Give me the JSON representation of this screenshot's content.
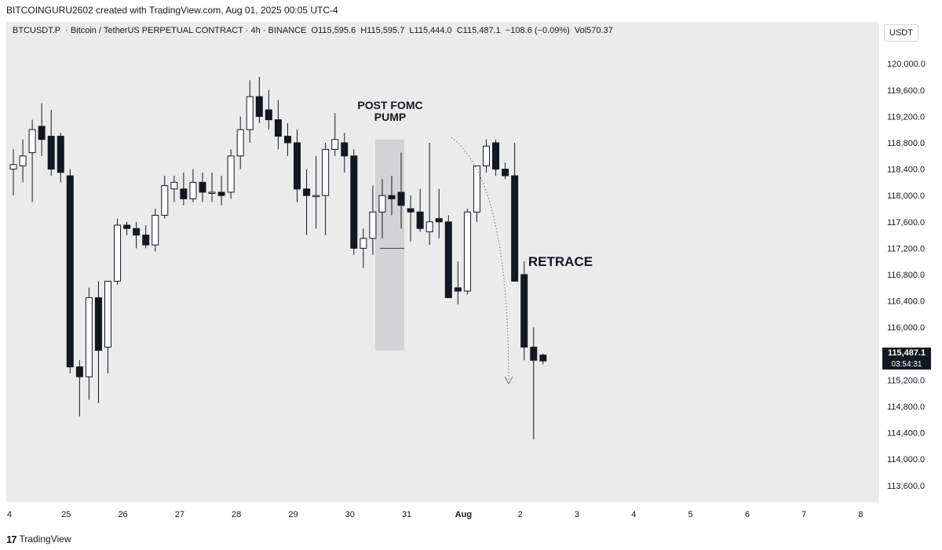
{
  "header": {
    "creator_line": "BITCOINGURU2602 created with TradingView.com, Aug 01, 2025 00:05 UTC-4"
  },
  "symbol_line": {
    "symbol": "BTCUSDT.P",
    "description": "· Bitcoin / TetherUS PERPETUAL CONTRACT · 4h · BINANCE",
    "open": "O115,595.6",
    "high": "H115,595.7",
    "low": "L115,444.0",
    "close": "C115,487.1",
    "change": "−108.6 (−0.09%)",
    "volume": "Vol570.37"
  },
  "price_axis": {
    "currency": "USDT",
    "last_price": "115,487.1",
    "countdown": "03:54:31"
  },
  "footer": {
    "logo_glyph": "17",
    "brand": "TradingView"
  },
  "colors": {
    "chart_bg": "#ebebeb",
    "bull_body": "#ffffff",
    "bear_body": "#131722",
    "wick": "#131722",
    "highlight_box": "#d3d3d6"
  },
  "chart_data": {
    "type": "candlestick",
    "timeframe": "4h",
    "y_range": [
      113200,
      120300
    ],
    "y_ticks": [
      "120,000.0",
      "119,600.0",
      "119,200.0",
      "118,800.0",
      "118,400.0",
      "118,000.0",
      "117,600.0",
      "117,200.0",
      "116,800.0",
      "116,400.0",
      "116,000.0",
      "115,600.0",
      "115,200.0",
      "114,800.0",
      "114,400.0",
      "114,000.0",
      "113,600.0"
    ],
    "y_tick_values": [
      120000,
      119600,
      119200,
      118800,
      118400,
      118000,
      117600,
      117200,
      116800,
      116400,
      116000,
      115600,
      115200,
      114800,
      114400,
      114000,
      113600
    ],
    "x_ticks": [
      {
        "label": "4",
        "index": -0.5
      },
      {
        "label": "25",
        "index": 5.5
      },
      {
        "label": "26",
        "index": 11.5
      },
      {
        "label": "27",
        "index": 17.5
      },
      {
        "label": "28",
        "index": 23.5
      },
      {
        "label": "29",
        "index": 29.5
      },
      {
        "label": "30",
        "index": 35.5
      },
      {
        "label": "31",
        "index": 41.5
      },
      {
        "label": "Aug",
        "index": 47.5
      },
      {
        "label": "2",
        "index": 53.5
      },
      {
        "label": "3",
        "index": 59.5
      },
      {
        "label": "4",
        "index": 65.5
      },
      {
        "label": "5",
        "index": 71.5
      },
      {
        "label": "6",
        "index": 77.5
      },
      {
        "label": "7",
        "index": 83.5
      },
      {
        "label": "8",
        "index": 89.5
      }
    ],
    "candles": [
      {
        "o": 118400,
        "h": 118700,
        "l": 118000,
        "c": 118470
      },
      {
        "o": 118450,
        "h": 118850,
        "l": 118200,
        "c": 118600
      },
      {
        "o": 118650,
        "h": 119150,
        "l": 117900,
        "c": 119000
      },
      {
        "o": 119050,
        "h": 119400,
        "l": 118600,
        "c": 118850
      },
      {
        "o": 118900,
        "h": 119300,
        "l": 118300,
        "c": 118400
      },
      {
        "o": 118900,
        "h": 118950,
        "l": 118200,
        "c": 118350
      },
      {
        "o": 118300,
        "h": 118400,
        "l": 115300,
        "c": 115400
      },
      {
        "o": 115400,
        "h": 115500,
        "l": 114650,
        "c": 115250
      },
      {
        "o": 115250,
        "h": 116600,
        "l": 114900,
        "c": 116450
      },
      {
        "o": 116450,
        "h": 116700,
        "l": 114850,
        "c": 115650
      },
      {
        "o": 115700,
        "h": 116700,
        "l": 115300,
        "c": 116700
      },
      {
        "o": 116700,
        "h": 117650,
        "l": 116650,
        "c": 117550
      },
      {
        "o": 117550,
        "h": 117600,
        "l": 117400,
        "c": 117500
      },
      {
        "o": 117500,
        "h": 117600,
        "l": 117200,
        "c": 117400
      },
      {
        "o": 117400,
        "h": 117550,
        "l": 117200,
        "c": 117250
      },
      {
        "o": 117250,
        "h": 117800,
        "l": 117150,
        "c": 117700
      },
      {
        "o": 117700,
        "h": 118300,
        "l": 117650,
        "c": 118150
      },
      {
        "o": 118100,
        "h": 118300,
        "l": 117900,
        "c": 118200
      },
      {
        "o": 118100,
        "h": 118350,
        "l": 117850,
        "c": 117950
      },
      {
        "o": 117950,
        "h": 118400,
        "l": 117900,
        "c": 118200
      },
      {
        "o": 118200,
        "h": 118350,
        "l": 117900,
        "c": 118050
      },
      {
        "o": 118050,
        "h": 118350,
        "l": 117900,
        "c": 118050
      },
      {
        "o": 118050,
        "h": 118300,
        "l": 117850,
        "c": 118000
      },
      {
        "o": 118050,
        "h": 118700,
        "l": 117950,
        "c": 118600
      },
      {
        "o": 118600,
        "h": 119200,
        "l": 118400,
        "c": 119000
      },
      {
        "o": 119000,
        "h": 119750,
        "l": 118800,
        "c": 119500
      },
      {
        "o": 119500,
        "h": 119800,
        "l": 119100,
        "c": 119200
      },
      {
        "o": 119300,
        "h": 119600,
        "l": 119000,
        "c": 119150
      },
      {
        "o": 119150,
        "h": 119450,
        "l": 118700,
        "c": 118900
      },
      {
        "o": 118900,
        "h": 119100,
        "l": 118600,
        "c": 118800
      },
      {
        "o": 118800,
        "h": 119000,
        "l": 117900,
        "c": 118100
      },
      {
        "o": 118100,
        "h": 118400,
        "l": 117400,
        "c": 118000
      },
      {
        "o": 118000,
        "h": 118600,
        "l": 117500,
        "c": 118000
      },
      {
        "o": 118000,
        "h": 118800,
        "l": 117400,
        "c": 118700
      },
      {
        "o": 118700,
        "h": 119250,
        "l": 118600,
        "c": 118850
      },
      {
        "o": 118800,
        "h": 118950,
        "l": 118350,
        "c": 118600
      },
      {
        "o": 118600,
        "h": 118700,
        "l": 117100,
        "c": 117200
      },
      {
        "o": 117200,
        "h": 117500,
        "l": 116900,
        "c": 117350
      },
      {
        "o": 117350,
        "h": 118150,
        "l": 117100,
        "c": 117750
      },
      {
        "o": 117750,
        "h": 118250,
        "l": 117350,
        "c": 118000
      },
      {
        "o": 118000,
        "h": 118300,
        "l": 117700,
        "c": 117950
      },
      {
        "o": 118050,
        "h": 118650,
        "l": 117500,
        "c": 117850
      },
      {
        "o": 117800,
        "h": 118000,
        "l": 117300,
        "c": 117750
      },
      {
        "o": 117750,
        "h": 118100,
        "l": 117450,
        "c": 117500
      },
      {
        "o": 117450,
        "h": 118800,
        "l": 117250,
        "c": 117600
      },
      {
        "o": 117650,
        "h": 118100,
        "l": 117350,
        "c": 117600
      },
      {
        "o": 117600,
        "h": 117700,
        "l": 116450,
        "c": 116450
      },
      {
        "o": 116600,
        "h": 117000,
        "l": 116350,
        "c": 116550
      },
      {
        "o": 116550,
        "h": 117800,
        "l": 116500,
        "c": 117750
      },
      {
        "o": 117750,
        "h": 118450,
        "l": 117600,
        "c": 118450
      },
      {
        "o": 118450,
        "h": 118850,
        "l": 118350,
        "c": 118750
      },
      {
        "o": 118800,
        "h": 118850,
        "l": 118300,
        "c": 118400
      },
      {
        "o": 118400,
        "h": 118500,
        "l": 118250,
        "c": 118300
      },
      {
        "o": 118300,
        "h": 118800,
        "l": 116700,
        "c": 116700
      },
      {
        "o": 116800,
        "h": 117000,
        "l": 115500,
        "c": 115700
      },
      {
        "o": 115700,
        "h": 116000,
        "l": 114300,
        "c": 115500
      },
      {
        "o": 115580,
        "h": 115600,
        "l": 115440,
        "c": 115490
      }
    ],
    "annotations": [
      {
        "label_line1": "POST FOMC",
        "label_line2": "PUMP",
        "type": "shaded-box"
      },
      {
        "label": "RETRACE",
        "type": "curved-dotted-arrow"
      }
    ]
  }
}
